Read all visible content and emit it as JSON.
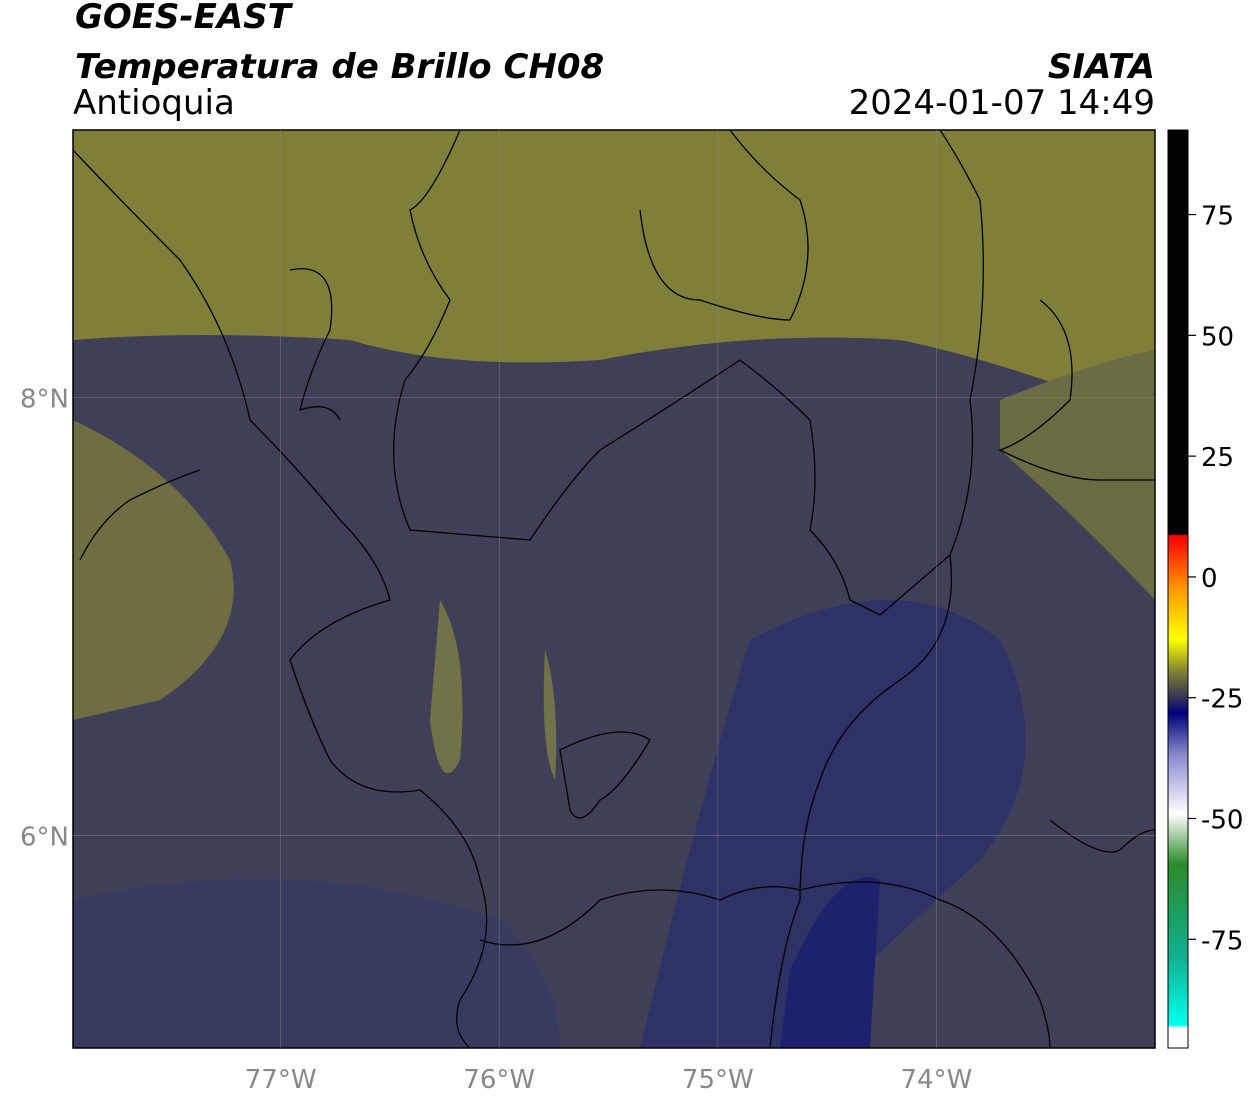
{
  "chart_data": {
    "type": "map",
    "title": "GOES-EAST",
    "subtitle": "Temperatura de Brillo CH08",
    "region": "Antioquia",
    "source": "SIATA",
    "datetime": "2024-01-07 14:49",
    "xlim": [
      -77.95,
      -73.0
    ],
    "xticks": [
      {
        "value": -77,
        "label": "77°W"
      },
      {
        "value": -76,
        "label": "76°W"
      },
      {
        "value": -75,
        "label": "75°W"
      },
      {
        "value": -74,
        "label": "74°W"
      }
    ],
    "ylim": [
      5.03,
      9.22
    ],
    "yticks": [
      {
        "value": 6,
        "label": "6°N"
      },
      {
        "value": 8,
        "label": "8°N"
      }
    ],
    "grid": true,
    "colorbar": {
      "lim": [
        -97.5,
        92.5
      ],
      "ticks": [
        75,
        50,
        25,
        0,
        -25,
        -50,
        -75
      ]
    }
  }
}
